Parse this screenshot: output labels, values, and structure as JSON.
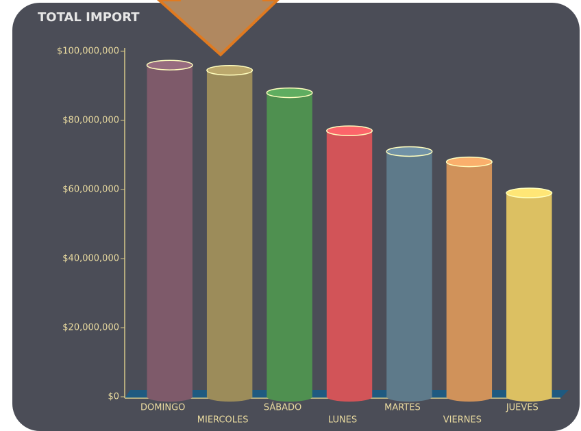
{
  "chart_data": {
    "type": "bar",
    "title": "TOTAL IMPORT",
    "categories": [
      "DOMINGO",
      "MIERCOLES",
      "SÁBADO",
      "LUNES",
      "MARTES",
      "VIERNES",
      "JUEVES"
    ],
    "values": [
      96000000,
      94500000,
      88000000,
      77000000,
      71000000,
      68000000,
      59000000
    ],
    "colors": [
      "#7e5a6a",
      "#9c8c5a",
      "#4f9050",
      "#d25458",
      "#5e7a8a",
      "#d0925a",
      "#dcc062"
    ],
    "ylim": [
      0,
      100000000
    ],
    "yticks": [
      {
        "value": 0,
        "label": "$0"
      },
      {
        "value": 20000000,
        "label": "$20,000,000"
      },
      {
        "value": 40000000,
        "label": "$40,000,000"
      },
      {
        "value": 60000000,
        "label": "$60,000,000"
      },
      {
        "value": 80000000,
        "label": "$80,000,000"
      },
      {
        "value": 100000000,
        "label": "$100,000,000"
      }
    ],
    "grid": false
  }
}
